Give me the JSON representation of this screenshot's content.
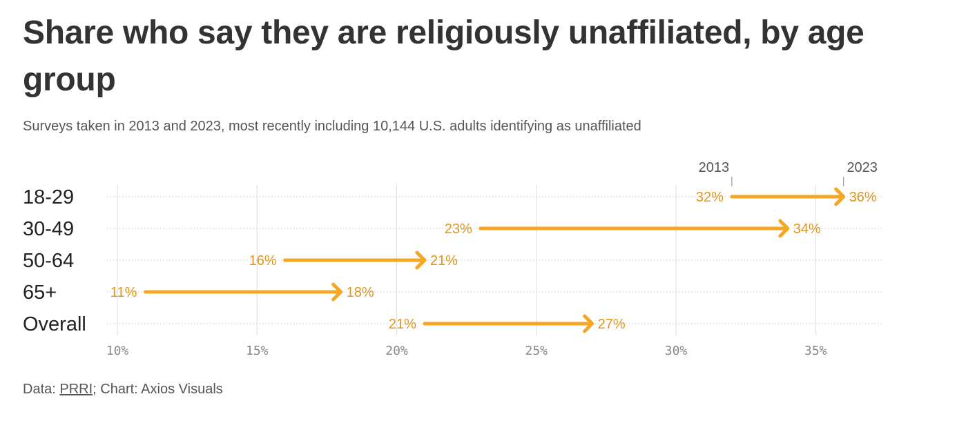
{
  "title": "Share who say they are religiously unaffiliated, by age group",
  "subtitle": "Surveys taken in 2013 and 2023, most recently including 10,144 U.S. adults identifying as unaffiliated",
  "footer": {
    "prefix": "Data: ",
    "source_link": "PRRI",
    "suffix": "; Chart: Axios Visuals"
  },
  "colors": {
    "arrow": "#f5a623",
    "label": "#e0951b",
    "grid": "#dddddd",
    "axis_text": "#888888",
    "category_text": "#222222",
    "title_text": "#333333"
  },
  "chart_data": {
    "type": "arrow-dot",
    "start_label": "2013",
    "end_label": "2023",
    "categories": [
      "18-29",
      "30-49",
      "50-64",
      "65+",
      "Overall"
    ],
    "series": [
      {
        "name": "2013",
        "values": [
          32,
          23,
          16,
          11,
          21
        ]
      },
      {
        "name": "2023",
        "values": [
          36,
          34,
          21,
          18,
          27
        ]
      }
    ],
    "value_labels_start": [
      "32%",
      "23%",
      "16%",
      "11%",
      "21%"
    ],
    "value_labels_end": [
      "36%",
      "34%",
      "21%",
      "18%",
      "27%"
    ],
    "xlim": [
      10,
      37.5
    ],
    "xticks": [
      10,
      15,
      20,
      25,
      30,
      35
    ],
    "xtick_labels": [
      "10%",
      "15%",
      "20%",
      "25%",
      "30%",
      "35%"
    ],
    "grid": true
  }
}
